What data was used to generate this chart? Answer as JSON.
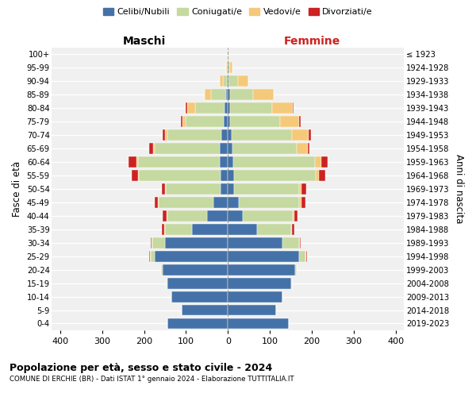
{
  "age_groups": [
    "0-4",
    "5-9",
    "10-14",
    "15-19",
    "20-24",
    "25-29",
    "30-34",
    "35-39",
    "40-44",
    "45-49",
    "50-54",
    "55-59",
    "60-64",
    "65-69",
    "70-74",
    "75-79",
    "80-84",
    "85-89",
    "90-94",
    "95-99",
    "100+"
  ],
  "birth_years": [
    "2019-2023",
    "2014-2018",
    "2009-2013",
    "2004-2008",
    "1999-2003",
    "1994-1998",
    "1989-1993",
    "1984-1988",
    "1979-1983",
    "1974-1978",
    "1969-1973",
    "1964-1968",
    "1959-1963",
    "1954-1958",
    "1949-1953",
    "1944-1948",
    "1939-1943",
    "1934-1938",
    "1929-1933",
    "1924-1928",
    "≤ 1923"
  ],
  "male": {
    "celibe": [
      145,
      110,
      135,
      145,
      155,
      175,
      150,
      85,
      50,
      35,
      18,
      18,
      20,
      20,
      15,
      10,
      8,
      5,
      2,
      1,
      0
    ],
    "coniugato": [
      0,
      0,
      0,
      2,
      5,
      10,
      30,
      65,
      95,
      130,
      130,
      195,
      195,
      155,
      130,
      90,
      70,
      35,
      10,
      2,
      0
    ],
    "vedovo": [
      0,
      0,
      0,
      0,
      0,
      1,
      2,
      2,
      2,
      2,
      2,
      2,
      3,
      3,
      5,
      8,
      20,
      15,
      8,
      2,
      0
    ],
    "divorziato": [
      0,
      0,
      0,
      0,
      0,
      2,
      3,
      5,
      8,
      8,
      8,
      15,
      20,
      10,
      5,
      5,
      2,
      0,
      0,
      0,
      0
    ]
  },
  "female": {
    "nubile": [
      145,
      115,
      130,
      150,
      160,
      170,
      130,
      70,
      35,
      25,
      15,
      15,
      12,
      10,
      8,
      5,
      5,
      5,
      2,
      1,
      0
    ],
    "coniugata": [
      0,
      0,
      0,
      2,
      5,
      15,
      40,
      80,
      120,
      145,
      155,
      195,
      195,
      155,
      145,
      120,
      100,
      55,
      22,
      5,
      0
    ],
    "vedova": [
      0,
      0,
      0,
      0,
      0,
      2,
      2,
      3,
      3,
      5,
      5,
      8,
      15,
      25,
      40,
      45,
      50,
      50,
      25,
      5,
      1
    ],
    "divorziata": [
      0,
      0,
      0,
      0,
      0,
      2,
      2,
      5,
      8,
      10,
      12,
      15,
      15,
      5,
      5,
      3,
      2,
      0,
      0,
      0,
      0
    ]
  },
  "colors": {
    "celibe": "#4472a8",
    "coniugato": "#c5d9a0",
    "vedovo": "#f5c97a",
    "divorziato": "#cc2222"
  },
  "xlim": 420,
  "title": "Popolazione per età, sesso e stato civile - 2024",
  "subtitle": "COMUNE DI ERCHIE (BR) - Dati ISTAT 1° gennaio 2024 - Elaborazione TUTTITALIA.IT",
  "ylabel_left": "Fasce di età",
  "ylabel_right": "Anni di nascita",
  "xlabel_left": "Maschi",
  "xlabel_right": "Femmine",
  "bg_color": "#f0f0f0",
  "legend_labels": [
    "Celibi/Nubili",
    "Coniugati/e",
    "Vedovi/e",
    "Divorziati/e"
  ]
}
